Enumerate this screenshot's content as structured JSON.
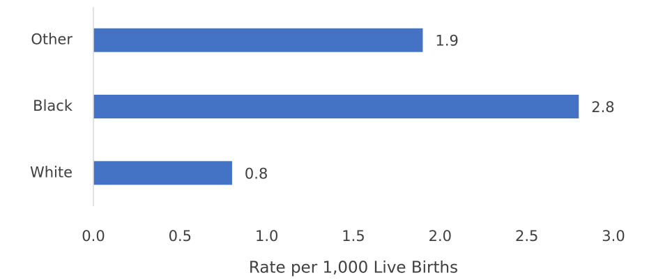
{
  "chart_data": {
    "type": "bar",
    "orientation": "horizontal",
    "categories": [
      "White",
      "Black",
      "Other"
    ],
    "values": [
      0.8,
      2.8,
      1.9
    ],
    "color": "#4472c4",
    "xlabel": "Rate per 1,000 Live Births",
    "xlim": [
      0,
      3
    ],
    "xticks": [
      {
        "value": 0,
        "label": "0.0"
      },
      0.5,
      {
        "value": 1,
        "label": "1.0"
      },
      1.5,
      {
        "value": 2,
        "label": "2.0"
      },
      2.5,
      {
        "value": 3,
        "label": "3.0"
      }
    ],
    "grid": false
  }
}
